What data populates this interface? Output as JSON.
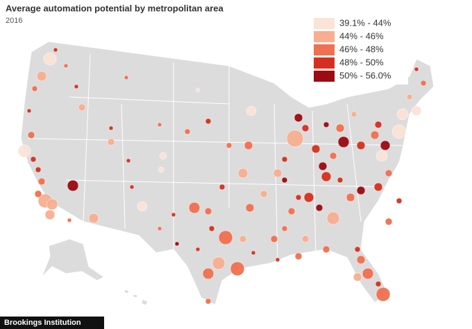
{
  "header": {
    "title": "Average automation potential by metropolitan area",
    "subtitle": "2016"
  },
  "legend": {
    "items": [
      {
        "label": "39.1% - 44%",
        "color": "#fbe3d6"
      },
      {
        "label": "44% - 46%",
        "color": "#f8ae90"
      },
      {
        "label": "46% - 48%",
        "color": "#f1704f"
      },
      {
        "label": "48% - 50%",
        "color": "#d5301f"
      },
      {
        "label": "50% - 56.0%",
        "color": "#9c0a12"
      }
    ]
  },
  "footer": {
    "source": "Brookings Institution"
  }
}
